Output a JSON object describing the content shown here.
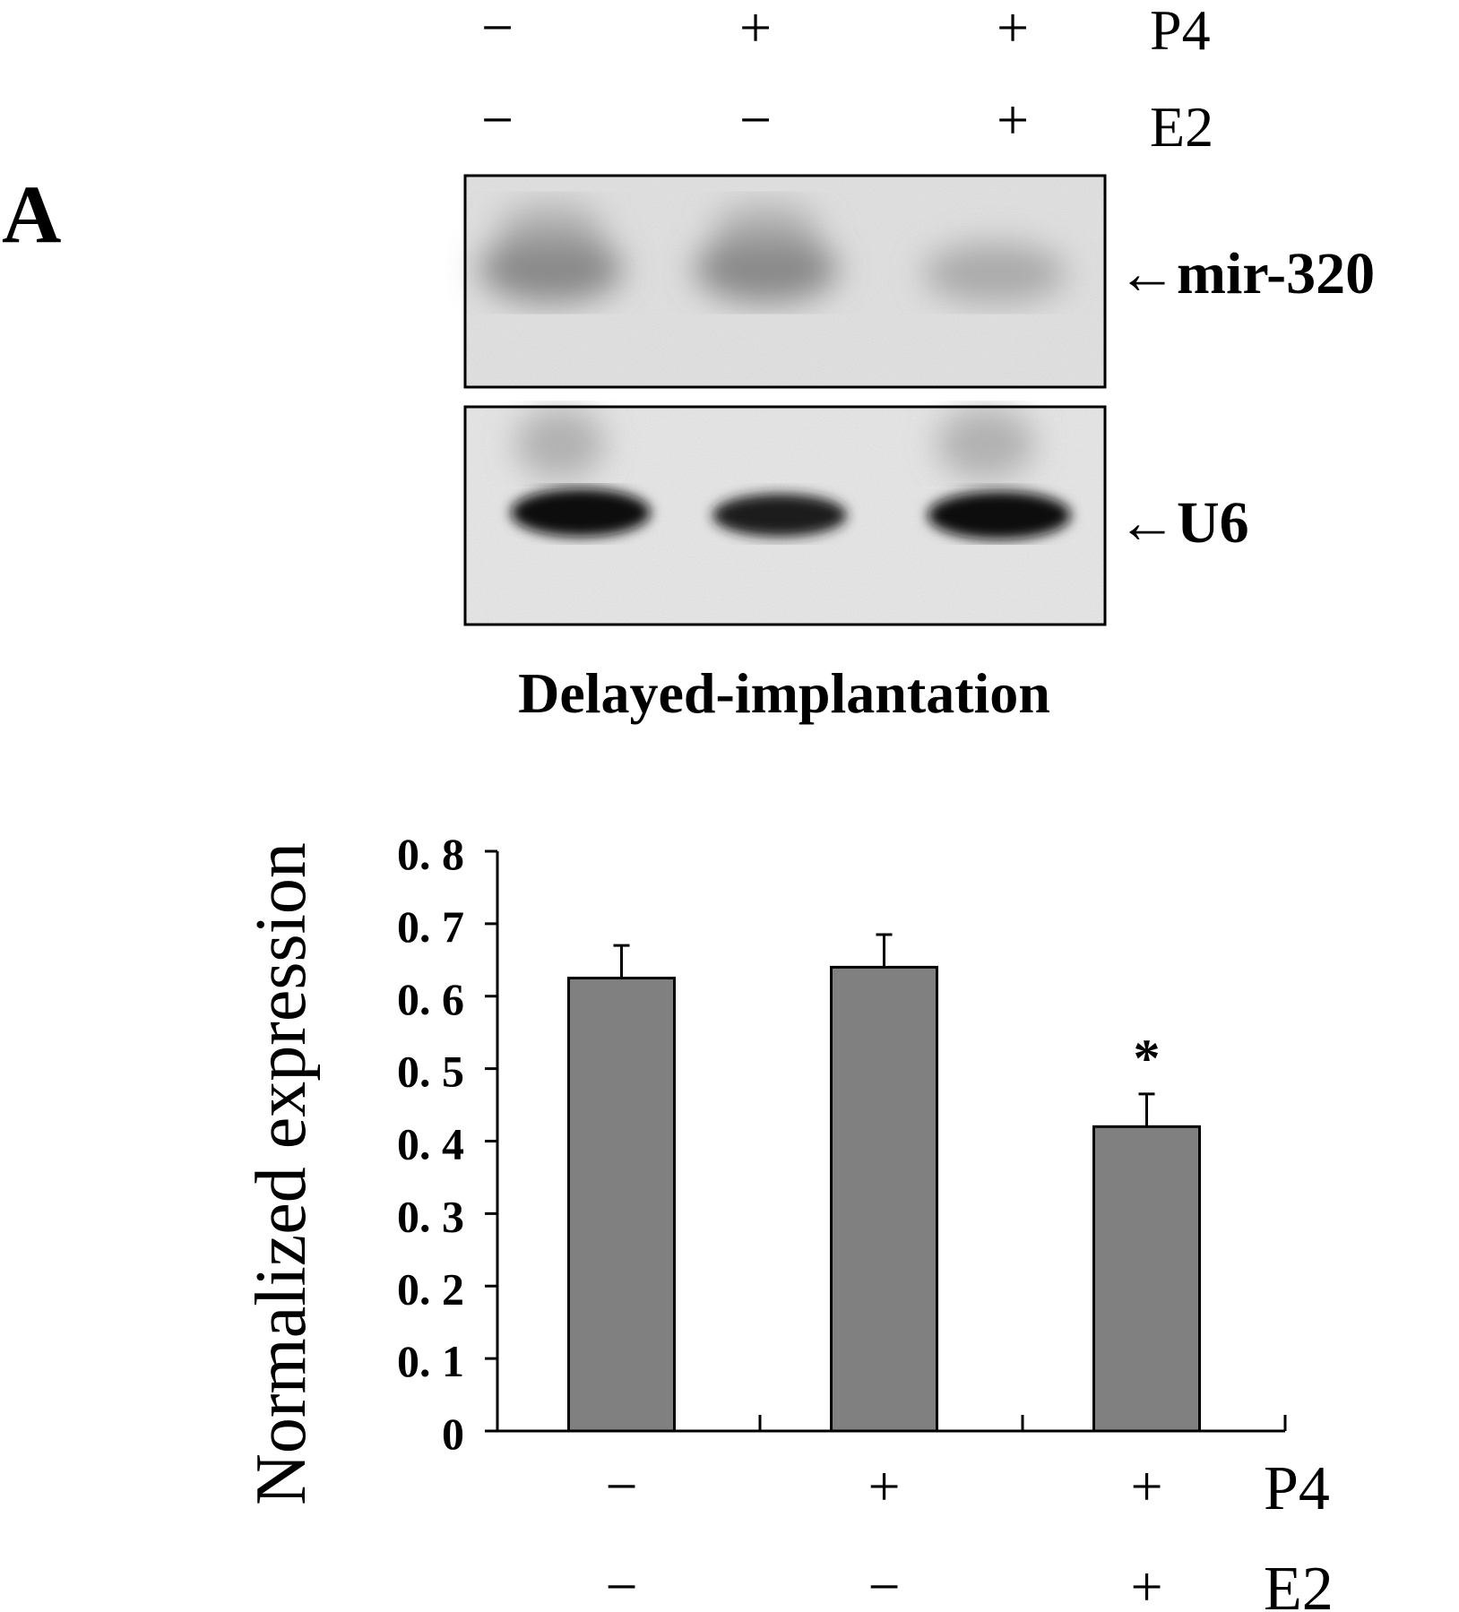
{
  "panel_label": "A",
  "blot": {
    "treatment_rows": [
      {
        "label": "P4",
        "signs": [
          "−",
          "+",
          "+"
        ]
      },
      {
        "label": "E2",
        "signs": [
          "−",
          "−",
          "+"
        ]
      }
    ],
    "band_labels": [
      "←mir-320",
      "←U6"
    ],
    "caption": "Delayed-implantation"
  },
  "chart_data": {
    "type": "bar",
    "categories": [
      "P4 −, E2 −",
      "P4 +, E2 −",
      "P4 +, E2 +"
    ],
    "values": [
      0.625,
      0.64,
      0.42
    ],
    "errors": [
      0.045,
      0.045,
      0.045
    ],
    "annotations": [
      "",
      "",
      "*"
    ],
    "ylabel": "Normalized expression",
    "ylim": [
      0,
      0.8
    ],
    "yticks": [
      "0",
      "0. 1",
      "0. 2",
      "0. 3",
      "0. 4",
      "0. 5",
      "0. 6",
      "0. 7",
      "0. 8"
    ],
    "x_treatment_rows": [
      {
        "label": "P4",
        "signs": [
          "−",
          "+",
          "+"
        ]
      },
      {
        "label": "E2",
        "signs": [
          "−",
          "−",
          "+"
        ]
      }
    ],
    "bar_color": "#808080",
    "grid": false
  }
}
